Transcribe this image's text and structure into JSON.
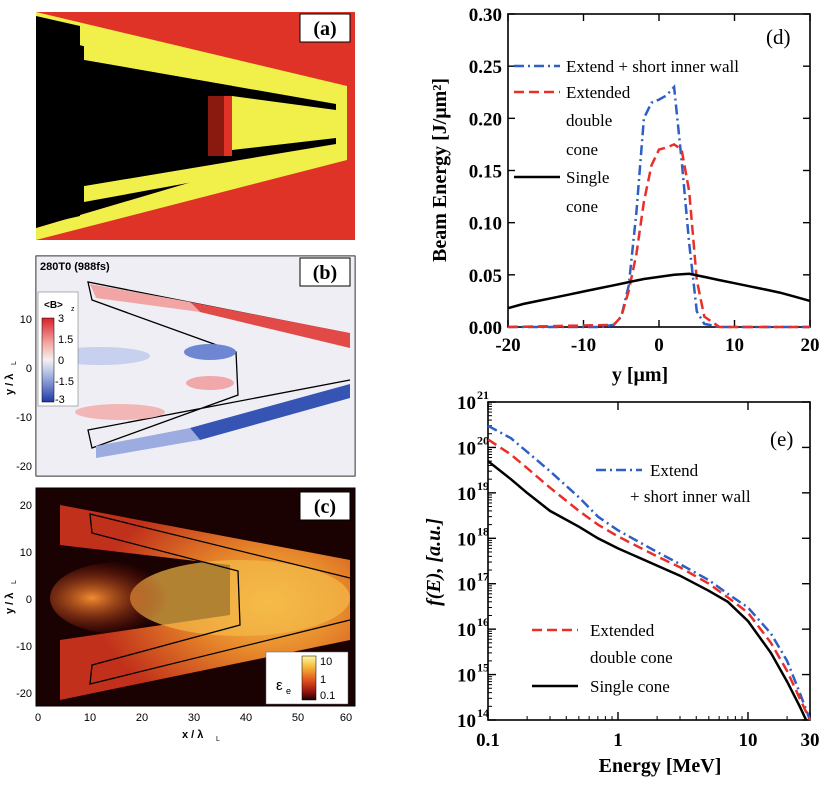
{
  "panels": {
    "a": {
      "label": "(a)"
    },
    "b": {
      "label": "(b)",
      "time_label": "280T0 (988fs)",
      "colorbar_title": "<B>",
      "colorbar_subscript": "z",
      "colorbar_ticks": [
        "3",
        "1.5",
        "0",
        "-1.5",
        "-3"
      ],
      "y_ticks": [
        "10",
        "0",
        "-10",
        "-20"
      ],
      "ylabel": "y / λ",
      "ylabel_sub": "L"
    },
    "c": {
      "label": "(c)",
      "colorbar_symbol": "ε",
      "colorbar_subscript": "e",
      "colorbar_ticks": [
        "10",
        "1",
        "0.1"
      ],
      "y_ticks": [
        "20",
        "10",
        "0",
        "-10",
        "-20"
      ],
      "x_ticks": [
        "0",
        "10",
        "20",
        "30",
        "40",
        "50",
        "60"
      ],
      "xlabel": "x / λ",
      "xlabel_sub": "L",
      "ylabel": "y / λ",
      "ylabel_sub": "L"
    }
  },
  "colors": {
    "extend": "#2d5fc4",
    "extended": "#e8302a",
    "single": "#000000",
    "panel_a_bg": "#e03327",
    "panel_a_wall": "#f1f04a"
  },
  "chart_data": [
    {
      "id": "d",
      "type": "line",
      "panel_label": "(d)",
      "xlabel": "y  [μm]",
      "ylabel": "Beam Energy [J/μm²]",
      "xlim": [
        -20,
        20
      ],
      "ylim": [
        0,
        0.3
      ],
      "x_ticks": [
        "-20",
        "-10",
        "0",
        "10",
        "20"
      ],
      "y_ticks": [
        "0.00",
        "0.05",
        "0.10",
        "0.15",
        "0.20",
        "0.25",
        "0.30"
      ],
      "series": [
        {
          "name": "Extend + short inner wall",
          "style": "dashdot",
          "x": [
            -20,
            -8,
            -6,
            -5,
            -4,
            -3,
            -2,
            -1,
            0,
            1,
            2,
            3,
            4,
            5,
            6,
            8,
            20
          ],
          "y": [
            0.0,
            0.0,
            0.002,
            0.01,
            0.04,
            0.11,
            0.2,
            0.215,
            0.218,
            0.222,
            0.23,
            0.16,
            0.08,
            0.015,
            0.003,
            0.0,
            0.0
          ]
        },
        {
          "name": "Extended double cone",
          "name_lines": [
            "Extended",
            "double",
            "cone"
          ],
          "style": "dashed",
          "x": [
            -20,
            -6,
            -5,
            -4,
            -3,
            -2,
            -1,
            0,
            1,
            2,
            3,
            4,
            5,
            6,
            8,
            20
          ],
          "y": [
            0.0,
            0.002,
            0.01,
            0.035,
            0.07,
            0.12,
            0.155,
            0.17,
            0.172,
            0.175,
            0.17,
            0.13,
            0.045,
            0.01,
            0.0,
            0.0
          ]
        },
        {
          "name": "Single cone",
          "name_lines": [
            "Single",
            "cone"
          ],
          "style": "solid",
          "x": [
            -20,
            -18,
            -16,
            -14,
            -12,
            -10,
            -8,
            -6,
            -4,
            -2,
            0,
            2,
            4,
            6,
            8,
            10,
            12,
            14,
            16,
            18,
            20
          ],
          "y": [
            0.018,
            0.022,
            0.025,
            0.028,
            0.031,
            0.034,
            0.037,
            0.04,
            0.043,
            0.046,
            0.048,
            0.05,
            0.051,
            0.048,
            0.045,
            0.042,
            0.039,
            0.036,
            0.033,
            0.029,
            0.025
          ]
        }
      ]
    },
    {
      "id": "e",
      "type": "line",
      "panel_label": "(e)",
      "xlabel": "Energy  [MeV]",
      "ylabel": "f(E), [a.u.]",
      "xscale": "log",
      "yscale": "log",
      "xlim": [
        0.1,
        30
      ],
      "ylim": [
        100000000000000.0,
        1e+21
      ],
      "x_ticks": [
        "0.1",
        "1",
        "10",
        "30"
      ],
      "y_tick_base": "10",
      "y_tick_exponents": [
        "14",
        "15",
        "16",
        "17",
        "18",
        "19",
        "20",
        "21"
      ],
      "series": [
        {
          "name": "Extend + short inner wall",
          "name_lines": [
            "Extend",
            "+ short inner wall"
          ],
          "style": "dashdot",
          "x": [
            0.1,
            0.15,
            0.2,
            0.3,
            0.5,
            0.7,
            1,
            2,
            3,
            5,
            7,
            10,
            15,
            20,
            25,
            30
          ],
          "y": [
            3e+20,
            1.6e+20,
            8e+19,
            3e+19,
            8e+18,
            3e+18,
            1.5e+18,
            5e+17,
            2.7e+17,
            1.2e+17,
            6e+16,
            3e+16,
            8000000000000000.0,
            2000000000000000.0,
            400000000000000.0,
            100000000000000.0
          ]
        },
        {
          "name": "Extended double cone",
          "name_lines": [
            "Extended",
            "double cone"
          ],
          "style": "dashed",
          "x": [
            0.1,
            0.15,
            0.2,
            0.3,
            0.5,
            0.7,
            1,
            2,
            3,
            5,
            7,
            10,
            15,
            20,
            25,
            30
          ],
          "y": [
            1.5e+20,
            7e+19,
            3.5e+19,
            1.3e+19,
            4e+18,
            2e+18,
            1.1e+18,
            4e+17,
            2.3e+17,
            1e+17,
            5e+16,
            2.3e+16,
            5000000000000000.0,
            1200000000000000.0,
            300000000000000.0,
            100000000000000.0
          ]
        },
        {
          "name": "Single cone",
          "style": "solid",
          "x": [
            0.1,
            0.15,
            0.2,
            0.3,
            0.5,
            0.7,
            1,
            2,
            3,
            5,
            7,
            10,
            15,
            20,
            25,
            28
          ],
          "y": [
            5e+19,
            2e+19,
            1e+19,
            4e+18,
            1.8e+18,
            1e+18,
            6e+17,
            2.5e+17,
            1.5e+17,
            7e+16,
            4e+16,
            1.5e+16,
            3000000000000000.0,
            700000000000000.0,
            200000000000000.0,
            100000000000000.0
          ]
        }
      ]
    }
  ]
}
